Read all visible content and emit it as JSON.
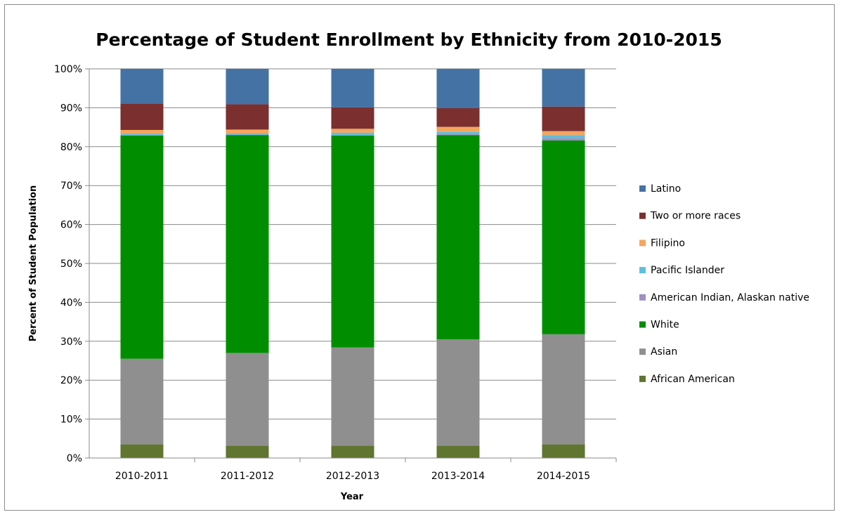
{
  "chart_data": {
    "type": "bar",
    "stacked": true,
    "title": "Percentage of Student Enrollment by Ethnicity from 2010-2015",
    "xlabel": "Year",
    "ylabel": "Percent of Student Population",
    "ylim": [
      0,
      100
    ],
    "yticks": [
      "0%",
      "10%",
      "20%",
      "30%",
      "40%",
      "50%",
      "60%",
      "70%",
      "80%",
      "90%",
      "100%"
    ],
    "grid": true,
    "legend_position": "right",
    "categories": [
      "2010-2011",
      "2011-2012",
      "2012-2013",
      "2013-2014",
      "2014-2015"
    ],
    "series": [
      {
        "name": "African American",
        "color": "#5f7530",
        "values": [
          3.5,
          3.2,
          3.2,
          3.2,
          3.5
        ]
      },
      {
        "name": "Asian",
        "color": "#8f8f8f",
        "values": [
          22.0,
          23.8,
          25.2,
          27.3,
          28.3
        ]
      },
      {
        "name": "White",
        "color": "#008e00",
        "values": [
          57.4,
          56.0,
          54.5,
          52.5,
          49.8
        ]
      },
      {
        "name": "American Indian, Alaskan native",
        "color": "#a08ec4",
        "values": [
          0.1,
          0.1,
          0.1,
          0.2,
          0.6
        ]
      },
      {
        "name": "Pacific Islander",
        "color": "#5bc0de",
        "values": [
          0.3,
          0.3,
          0.6,
          0.6,
          0.8
        ]
      },
      {
        "name": "Filipino",
        "color": "#f5a55d",
        "values": [
          1.0,
          1.0,
          1.0,
          1.3,
          1.0
        ]
      },
      {
        "name": "Two or more races",
        "color": "#7b2f2f",
        "values": [
          6.8,
          6.5,
          5.5,
          4.8,
          6.3
        ]
      },
      {
        "name": "Latino",
        "color": "#4472a4",
        "values": [
          8.9,
          9.1,
          9.9,
          10.1,
          9.7
        ]
      }
    ],
    "legend_order": [
      "Latino",
      "Two or more races",
      "Filipino",
      "Pacific Islander",
      "American Indian, Alaskan native",
      "White",
      "Asian",
      "African American"
    ]
  }
}
